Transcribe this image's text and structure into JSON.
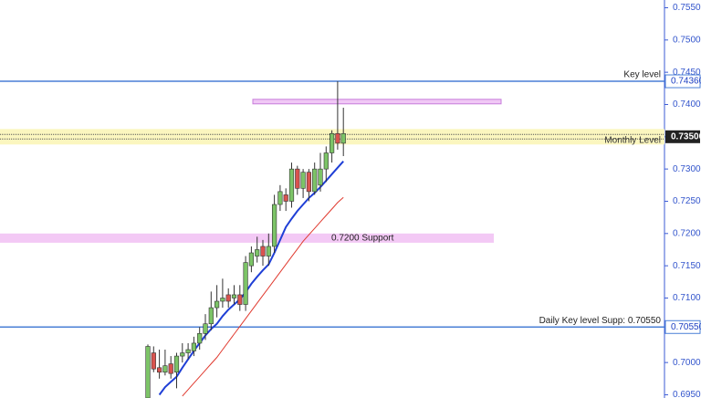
{
  "chart_data": {
    "type": "candlestick",
    "ylim": [
      0.6945,
      0.7562
    ],
    "yticks": [
      {
        "value": 0.755,
        "label": "0.75500"
      },
      {
        "value": 0.75,
        "label": "0.75000"
      },
      {
        "value": 0.745,
        "label": "0.74500"
      },
      {
        "value": 0.74,
        "label": "0.74000"
      },
      {
        "value": 0.735,
        "label": "0.73500"
      },
      {
        "value": 0.73,
        "label": "0.73000"
      },
      {
        "value": 0.725,
        "label": "0.72500"
      },
      {
        "value": 0.72,
        "label": "0.72000"
      },
      {
        "value": 0.715,
        "label": "0.71500"
      },
      {
        "value": 0.71,
        "label": "0.71000"
      },
      {
        "value": 0.705,
        "label": "0.70500"
      },
      {
        "value": 0.7,
        "label": "0.70000"
      },
      {
        "value": 0.695,
        "label": "0.69500"
      }
    ],
    "up_color": "#7cc467",
    "down_color": "#d9534f",
    "open": [
      0.6945,
      0.7015,
      0.6992,
      0.6985,
      0.6998,
      0.6985,
      0.701,
      0.7015,
      0.7018,
      0.703,
      0.7045,
      0.706,
      0.7085,
      0.7095,
      0.7105,
      0.71,
      0.7105,
      0.709,
      0.715,
      0.7165,
      0.718,
      0.7165,
      0.718,
      0.7245,
      0.726,
      0.725,
      0.73,
      0.727,
      0.7295,
      0.7265,
      0.7275,
      0.73,
      0.7325,
      0.7355,
      0.734
    ],
    "high": [
      0.7028,
      0.7025,
      0.702,
      0.702,
      0.701,
      0.7015,
      0.703,
      0.703,
      0.704,
      0.7055,
      0.7075,
      0.711,
      0.712,
      0.713,
      0.7115,
      0.712,
      0.712,
      0.7165,
      0.718,
      0.7195,
      0.719,
      0.72,
      0.726,
      0.7275,
      0.727,
      0.731,
      0.7305,
      0.73,
      0.73,
      0.731,
      0.7325,
      0.7335,
      0.736,
      0.7436,
      0.7395
    ],
    "low": [
      0.6945,
      0.6985,
      0.6975,
      0.698,
      0.6975,
      0.696,
      0.7,
      0.7005,
      0.701,
      0.702,
      0.7035,
      0.705,
      0.707,
      0.7085,
      0.7085,
      0.709,
      0.708,
      0.708,
      0.714,
      0.7155,
      0.715,
      0.715,
      0.717,
      0.7235,
      0.7235,
      0.724,
      0.726,
      0.7255,
      0.725,
      0.726,
      0.7265,
      0.728,
      0.731,
      0.733,
      0.732
    ],
    "close": [
      0.7025,
      0.699,
      0.6985,
      0.6995,
      0.6983,
      0.701,
      0.7015,
      0.702,
      0.703,
      0.7045,
      0.706,
      0.7085,
      0.7095,
      0.71,
      0.7095,
      0.7105,
      0.709,
      0.7155,
      0.717,
      0.7175,
      0.7165,
      0.718,
      0.7245,
      0.7265,
      0.725,
      0.73,
      0.727,
      0.7295,
      0.7265,
      0.73,
      0.73,
      0.7325,
      0.7355,
      0.734,
      0.7355
    ],
    "lines": [
      {
        "color": "#1f3fd6",
        "values": [
          null,
          null,
          0.695,
          0.6962,
          0.697,
          0.6978,
          0.6992,
          0.7005,
          0.7018,
          0.703,
          0.7042,
          0.7052,
          0.706,
          0.7072,
          0.7082,
          0.709,
          0.7098,
          0.7109,
          0.7122,
          0.7133,
          0.7143,
          0.7152,
          0.717,
          0.719,
          0.721,
          0.7223,
          0.7235,
          0.7245,
          0.7255,
          0.7263,
          0.7272,
          0.7282,
          0.7292,
          0.7302,
          0.7312
        ]
      },
      {
        "color": "#e03a2f",
        "values": [
          null,
          null,
          null,
          null,
          null,
          null,
          0.6948,
          0.6958,
          0.6968,
          0.6978,
          0.6988,
          0.6998,
          0.7008,
          0.702,
          0.7032,
          0.7044,
          0.7056,
          0.7068,
          0.708,
          0.7092,
          0.7104,
          0.7116,
          0.7128,
          0.714,
          0.7152,
          0.7164,
          0.7176,
          0.7188,
          0.7198,
          0.7208,
          0.7218,
          0.7228,
          0.7238,
          0.7248,
          0.7256
        ]
      }
    ],
    "zones": [
      {
        "from": 0.7338,
        "to": 0.7362,
        "color": "#fbf6bf",
        "text": "Monthly Level"
      },
      {
        "from": 0.71857,
        "to": 0.72,
        "color": "#f3c9f5",
        "text": "0.7200 Support"
      },
      {
        "from": 0.7401,
        "to": 0.7408,
        "color": "#f0c8f5"
      }
    ],
    "levels": [
      {
        "value": 0.7436,
        "label": "0.74360",
        "text": "Key level",
        "color": "#4a7fd6"
      },
      {
        "value": 0.735,
        "label": "0.73500",
        "color": "#222222"
      },
      {
        "value": 0.7055,
        "label": "0.70550",
        "text": "Daily Key level Supp: 0.70550",
        "color": "#4a7fd6"
      }
    ]
  }
}
